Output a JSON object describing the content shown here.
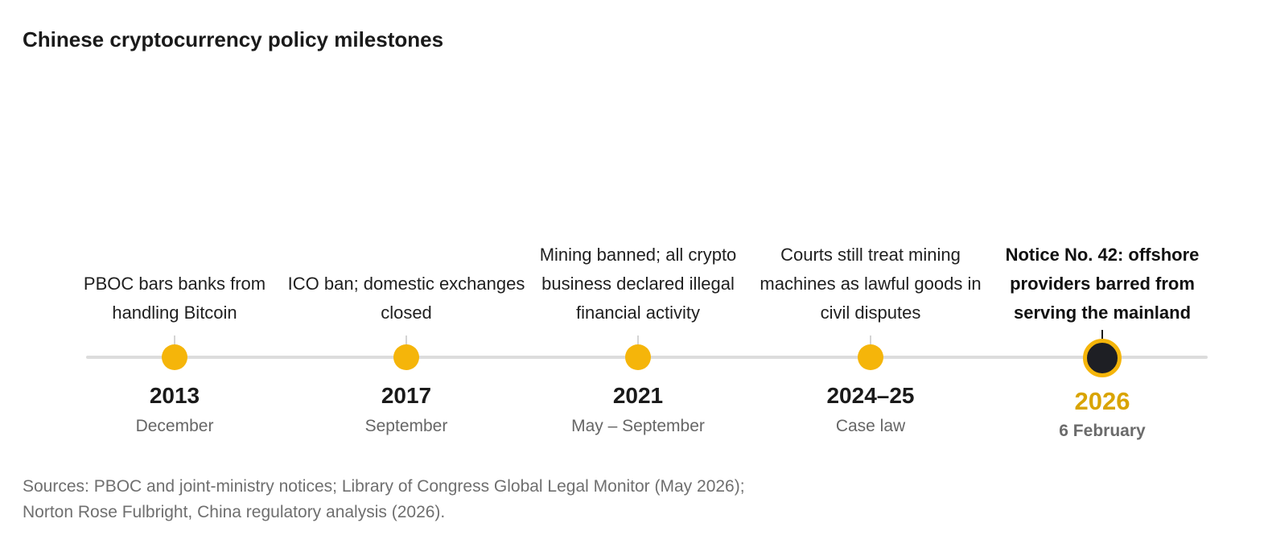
{
  "title": "Chinese cryptocurrency policy milestones",
  "events": [
    {
      "year": "2013",
      "period": "December",
      "description": "PBOC bars banks from handling Bitcoin",
      "highlight": false
    },
    {
      "year": "2017",
      "period": "September",
      "description": "ICO ban; domestic exchanges closed",
      "highlight": false
    },
    {
      "year": "2021",
      "period": "May – September",
      "description": "Mining banned; all crypto business declared illegal financial activity",
      "highlight": false
    },
    {
      "year": "2024–25",
      "period": "Case law",
      "description": "Courts still treat mining machines as lawful goods in civil disputes",
      "highlight": false
    },
    {
      "year": "2026",
      "period": "6 February",
      "description": "Notice No. 42: offshore providers barred from serving the mainland",
      "highlight": true
    }
  ],
  "sources": "Sources: PBOC and joint-ministry notices; Library of Congress Global Legal Monitor (May 2026); Norton Rose Fulbright, China regulatory analysis (2026).",
  "colors": {
    "marker": "#f5b50a",
    "highlight_marker_fill": "#1e1f24",
    "highlight_year": "#d9a400",
    "axis_line": "#dcdcdc"
  }
}
